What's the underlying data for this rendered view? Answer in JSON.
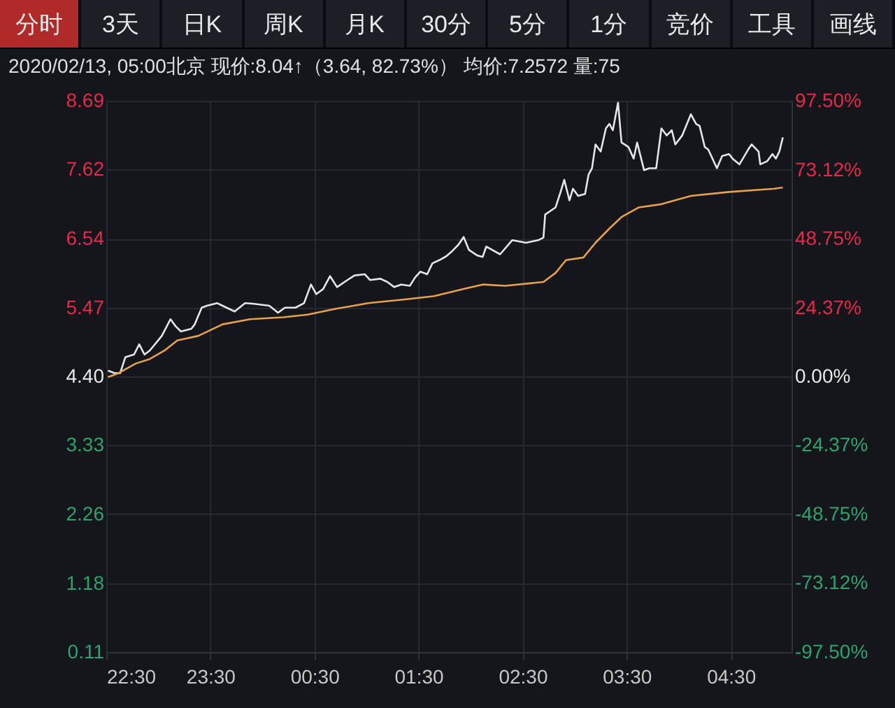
{
  "chart_data": {
    "type": "line",
    "title": "2020/02/13, 05:00北京 现价:8.04↑（3.64, 82.73%） 均价:7.2572 量:75",
    "annotations": [
      "分时",
      "3天",
      "日K",
      "周K",
      "月K",
      "30分",
      "5分",
      "1分",
      "竞价",
      "工具",
      "画线"
    ],
    "series": [
      {
        "color": "#e6e6e6",
        "x": [
          "2020-02-12T22:31",
          "2020-02-12T22:35",
          "2020-02-12T22:38",
          "2020-02-12T22:41",
          "2020-02-12T22:46",
          "2020-02-12T22:49",
          "2020-02-12T22:52",
          "2020-02-12T22:55",
          "2020-02-12T23:02",
          "2020-02-12T23:07",
          "2020-02-12T23:10",
          "2020-02-12T23:13",
          "2020-02-12T23:19",
          "2020-02-12T23:21",
          "2020-02-12T23:25",
          "2020-02-12T23:28",
          "2020-02-12T23:34",
          "2020-02-12T23:37",
          "2020-02-12T23:44",
          "2020-02-12T23:50",
          "2020-02-12T23:55",
          "2020-02-13T00:04",
          "2020-02-13T00:09",
          "2020-02-13T00:13",
          "2020-02-13T00:19",
          "2020-02-13T00:24",
          "2020-02-13T00:28",
          "2020-02-13T00:31",
          "2020-02-13T00:35",
          "2020-02-13T00:39",
          "2020-02-13T00:43",
          "2020-02-13T00:49",
          "2020-02-13T00:53",
          "2020-02-13T00:59",
          "2020-02-13T01:02",
          "2020-02-13T01:08",
          "2020-02-13T01:12",
          "2020-02-13T01:16",
          "2020-02-13T01:20",
          "2020-02-13T01:25",
          "2020-02-13T01:28",
          "2020-02-13T01:31",
          "2020-02-13T01:35",
          "2020-02-13T01:38",
          "2020-02-13T01:42",
          "2020-02-13T01:46",
          "2020-02-13T01:49",
          "2020-02-13T01:53",
          "2020-02-13T01:56",
          "2020-02-13T01:59",
          "2020-02-13T02:04",
          "2020-02-13T02:07",
          "2020-02-13T02:09",
          "2020-02-13T02:17",
          "2020-02-13T02:24",
          "2020-02-13T02:32",
          "2020-02-13T02:39",
          "2020-02-13T02:42",
          "2020-02-13T02:43",
          "2020-02-13T02:49",
          "2020-02-13T02:52",
          "2020-02-13T02:54",
          "2020-02-13T02:57",
          "2020-02-13T02:59",
          "2020-02-13T03:02",
          "2020-02-13T03:06",
          "2020-02-13T03:08",
          "2020-02-13T03:10",
          "2020-02-13T03:12",
          "2020-02-13T03:15",
          "2020-02-13T03:18",
          "2020-02-13T03:20",
          "2020-02-13T03:22",
          "2020-02-13T03:25",
          "2020-02-13T03:27",
          "2020-02-13T03:31",
          "2020-02-13T03:34",
          "2020-02-13T03:36",
          "2020-02-13T03:40",
          "2020-02-13T03:43",
          "2020-02-13T03:47",
          "2020-02-13T03:50",
          "2020-02-13T03:53",
          "2020-02-13T03:56",
          "2020-02-13T03:58",
          "2020-02-13T04:02",
          "2020-02-13T04:07",
          "2020-02-13T04:10",
          "2020-02-13T04:12",
          "2020-02-13T04:15",
          "2020-02-13T04:17",
          "2020-02-13T04:22",
          "2020-02-13T04:25",
          "2020-02-13T04:29",
          "2020-02-13T04:31",
          "2020-02-13T04:35",
          "2020-02-13T04:40",
          "2020-02-13T04:42",
          "2020-02-13T04:46",
          "2020-02-13T04:47",
          "2020-02-13T04:51",
          "2020-02-13T04:54",
          "2020-02-13T04:56",
          "2020-02-13T04:58",
          "2020-02-13T05:00"
        ],
        "values": [
          4.49,
          4.45,
          4.45,
          4.7,
          4.74,
          4.9,
          4.74,
          4.8,
          5.03,
          5.29,
          5.18,
          5.1,
          5.14,
          5.21,
          5.47,
          5.5,
          5.54,
          5.5,
          5.41,
          5.54,
          5.53,
          5.5,
          5.39,
          5.47,
          5.47,
          5.54,
          5.83,
          5.68,
          5.76,
          5.96,
          5.79,
          5.9,
          5.97,
          5.99,
          5.9,
          5.92,
          5.87,
          5.79,
          5.83,
          5.81,
          5.94,
          6.03,
          5.99,
          6.16,
          6.21,
          6.27,
          6.34,
          6.45,
          6.57,
          6.37,
          6.28,
          6.26,
          6.42,
          6.3,
          6.52,
          6.48,
          6.52,
          6.56,
          6.92,
          7.03,
          7.28,
          7.46,
          7.14,
          7.32,
          7.21,
          7.24,
          7.54,
          7.64,
          8.01,
          7.9,
          8.26,
          8.33,
          8.23,
          8.66,
          8.04,
          7.97,
          7.79,
          8.04,
          7.61,
          7.64,
          7.64,
          8.26,
          8.15,
          8.23,
          8.01,
          8.15,
          8.48,
          8.33,
          8.3,
          7.97,
          7.93,
          7.64,
          7.83,
          7.86,
          7.79,
          7.7,
          7.93,
          8.01,
          7.9,
          7.7,
          7.75,
          7.86,
          7.79,
          7.9,
          8.12
        ]
      },
      {
        "color": "#e8a04c",
        "x": [
          "2020-02-12T22:31",
          "2020-02-12T22:37",
          "2020-02-12T22:47",
          "2020-02-12T22:55",
          "2020-02-12T23:04",
          "2020-02-12T23:11",
          "2020-02-12T23:23",
          "2020-02-12T23:37",
          "2020-02-12T23:53",
          "2020-02-13T00:12",
          "2020-02-13T00:26",
          "2020-02-13T00:42",
          "2020-02-13T01:01",
          "2020-02-13T01:23",
          "2020-02-13T01:39",
          "2020-02-13T01:56",
          "2020-02-13T02:07",
          "2020-02-13T02:20",
          "2020-02-13T02:42",
          "2020-02-13T02:49",
          "2020-02-13T02:55",
          "2020-02-13T03:05",
          "2020-02-13T03:12",
          "2020-02-13T03:20",
          "2020-02-13T03:27",
          "2020-02-13T03:37",
          "2020-02-13T03:50",
          "2020-02-13T04:07",
          "2020-02-13T04:29",
          "2020-02-13T04:55",
          "2020-02-13T05:00"
        ],
        "values": [
          4.39,
          4.45,
          4.6,
          4.67,
          4.81,
          4.96,
          5.03,
          5.21,
          5.29,
          5.32,
          5.36,
          5.45,
          5.54,
          5.6,
          5.65,
          5.76,
          5.83,
          5.81,
          5.87,
          6.01,
          6.21,
          6.25,
          6.48,
          6.7,
          6.88,
          7.03,
          7.08,
          7.21,
          7.27,
          7.32,
          7.34
        ]
      }
    ],
    "xlim": [
      "2020-02-12T22:30",
      "2020-02-13T05:05"
    ],
    "xticks": [
      {
        "value": "2020-02-12T22:30",
        "label": "22:30"
      },
      {
        "value": "2020-02-12T23:30",
        "label": "23:30"
      },
      {
        "value": "2020-02-13T00:30",
        "label": "00:30"
      },
      {
        "value": "2020-02-13T01:30",
        "label": "01:30"
      },
      {
        "value": "2020-02-13T02:30",
        "label": "02:30"
      },
      {
        "value": "2020-02-13T03:30",
        "label": "03:30"
      },
      {
        "value": "2020-02-13T04:30",
        "label": "04:30"
      }
    ],
    "ylim": [
      0.11,
      8.69
    ],
    "yticks": [
      {
        "value": 0.11,
        "label": "0.11"
      },
      {
        "value": 1.18,
        "label": "1.18"
      },
      {
        "value": 2.26,
        "label": "2.26"
      },
      {
        "value": 3.33,
        "label": "3.33"
      },
      {
        "value": 4.4,
        "label": "4.40"
      },
      {
        "value": 5.47,
        "label": "5.47"
      },
      {
        "value": 6.54,
        "label": "6.54"
      },
      {
        "value": 7.62,
        "label": "7.62"
      },
      {
        "value": 8.69,
        "label": "8.69"
      }
    ],
    "y2lim": [
      -97.5,
      97.5
    ],
    "y2ticks": [
      {
        "value": -97.5,
        "label": "-97.50%"
      },
      {
        "value": -73.12,
        "label": "-73.12%"
      },
      {
        "value": -48.75,
        "label": "-48.75%"
      },
      {
        "value": -24.37,
        "label": "-24.37%"
      },
      {
        "value": 0,
        "label": "0.00%"
      },
      {
        "value": 24.37,
        "label": "24.37%"
      },
      {
        "value": 48.75,
        "label": "48.75%"
      },
      {
        "value": 73.12,
        "label": "73.12%"
      },
      {
        "value": 97.5,
        "label": "97.50%"
      }
    ],
    "grid": true,
    "line_style": "solid"
  }
}
